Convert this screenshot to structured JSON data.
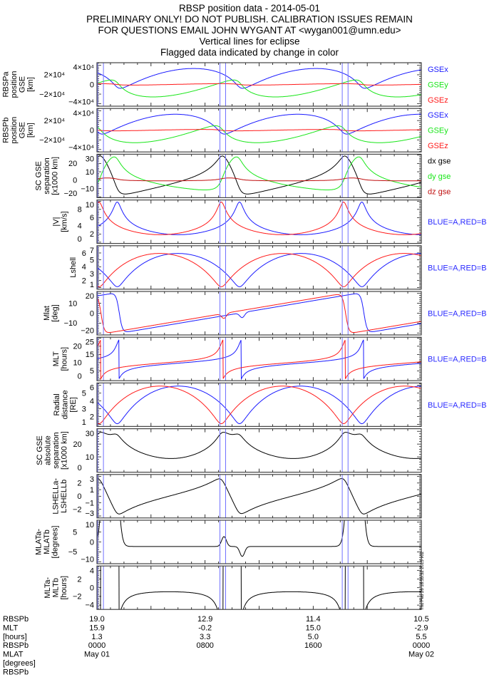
{
  "title_lines": [
    "RBSP position data - 2014-05-01",
    "PRELIMINARY ONLY! DO NOT PUBLISH. CALIBRATION ISSUES REMAIN",
    "FOR QUESTIONS EMAIL JOHN WYGANT AT <wygan001@umn.edu>",
    "Vertical lines for eclipse",
    "Flagged data indicated by change in color"
  ],
  "timestamp": "Thu Feb 26 18:55:32 2015 v02",
  "bottom_annotation": {
    "row_labels": [
      "RBSPb",
      "MLT",
      "[hours]",
      "RBSPb",
      "MLAT",
      "[degrees]",
      "RBSPb"
    ],
    "columns": [
      {
        "hour": 0,
        "values": [
          "19.0",
          "15.9",
          "1.3",
          "0000",
          "May 01"
        ]
      },
      {
        "hour": 8,
        "values": [
          "12.9",
          "-0.2",
          "3.3",
          "0800",
          ""
        ]
      },
      {
        "hour": 16,
        "values": [
          "11.4",
          "15.0",
          "5.0",
          "1600",
          ""
        ]
      },
      {
        "hour": 24,
        "values": [
          "10.5",
          "-2.9",
          "5.5",
          "0000",
          "May 02"
        ]
      }
    ]
  },
  "colors": {
    "blue": "#1a1aff",
    "red": "#ff1a1a",
    "green": "#19e619",
    "black": "#000000",
    "darkred": "#c01010",
    "eclipse": "#7070ff",
    "legend_blue": "#2a2aff"
  },
  "chart_data": {
    "type": "line",
    "x_range_hours": [
      0,
      24
    ],
    "eclipse_hours": [
      [
        0.05,
        0.48
      ],
      [
        9.1,
        9.52
      ],
      [
        18.15,
        18.58
      ]
    ],
    "orbit_model": {
      "period_hours": 9.05,
      "perigee_hours": {
        "A": 1.5,
        "B": 0.15
      },
      "perigee_RE": 1.1,
      "apogee_RE": 5.9,
      "perigee_direction_deg": 145,
      "mlat_slope_deg_per_hour": 2.3,
      "mlat_zero_hour": {
        "A": 10.5,
        "B": 9.5
      }
    },
    "panels": [
      {
        "ylabel": [
          "RBSPa",
          "position",
          "GSE",
          "[km]"
        ],
        "yrange": [
          -45000,
          45000
        ],
        "yticks": [
          {
            "v": 40000,
            "t": "4×10⁴"
          },
          {
            "v": 20000,
            "t": "2×10⁴"
          },
          {
            "v": 0,
            "t": "0"
          },
          {
            "v": -20000,
            "t": "−2×10⁴"
          },
          {
            "v": -40000,
            "t": "−4×10⁴"
          }
        ],
        "series": [
          {
            "name": "GSEx",
            "key": "xA",
            "color": "blue"
          },
          {
            "name": "GSEy",
            "key": "yA",
            "color": "green"
          },
          {
            "name": "GSEz",
            "key": "zA",
            "color": "red"
          }
        ],
        "legend": [
          {
            "text": "GSEx",
            "color": "blue"
          },
          {
            "text": "GSEy",
            "color": "green"
          },
          {
            "text": "GSEz",
            "color": "red"
          }
        ]
      },
      {
        "ylabel": [
          "RBSPb",
          "position",
          "GSE",
          "[km]"
        ],
        "yrange": [
          -45000,
          45000
        ],
        "yticks": [
          {
            "v": 40000,
            "t": "4×10⁴"
          },
          {
            "v": 20000,
            "t": "2×10⁴"
          },
          {
            "v": 0,
            "t": "0"
          },
          {
            "v": -20000,
            "t": "−2×10⁴"
          },
          {
            "v": -40000,
            "t": "−4×10⁴"
          }
        ],
        "series": [
          {
            "name": "GSEx",
            "key": "xB",
            "color": "blue"
          },
          {
            "name": "GSEy",
            "key": "yB",
            "color": "green"
          },
          {
            "name": "GSEz",
            "key": "zB",
            "color": "red"
          }
        ],
        "legend": [
          {
            "text": "GSEx",
            "color": "blue"
          },
          {
            "text": "GSEy",
            "color": "green"
          },
          {
            "text": "GSEz",
            "color": "red"
          }
        ]
      },
      {
        "ylabel": [
          "SC GSE",
          "separation",
          "[x1000 km]"
        ],
        "yrange": [
          -21,
          31
        ],
        "yticks": [
          {
            "v": 30,
            "t": "30"
          },
          {
            "v": 20,
            "t": "20"
          },
          {
            "v": 10,
            "t": "10"
          },
          {
            "v": 0,
            "t": "0"
          },
          {
            "v": -10,
            "t": "−10"
          },
          {
            "v": -20,
            "t": "−20"
          }
        ],
        "series": [
          {
            "name": "dx gse",
            "key": "dx",
            "color": "black"
          },
          {
            "name": "dy gse",
            "key": "dy",
            "color": "green"
          },
          {
            "name": "dz gse",
            "key": "dz",
            "color": "darkred"
          }
        ],
        "legend": [
          {
            "text": "dx gse",
            "color": "black"
          },
          {
            "text": "dy gse",
            "color": "green"
          },
          {
            "text": "dz gse",
            "color": "darkred"
          }
        ]
      },
      {
        "ylabel": [
          "|V|",
          "[km/s]"
        ],
        "yrange": [
          -0.3,
          10.3
        ],
        "yticks": [
          {
            "v": 10,
            "t": "10"
          },
          {
            "v": 8,
            "t": "8"
          },
          {
            "v": 6,
            "t": "6"
          },
          {
            "v": 4,
            "t": "4"
          },
          {
            "v": 2,
            "t": "2"
          },
          {
            "v": 0,
            "t": "0"
          }
        ],
        "series": [
          {
            "name": "A",
            "key": "vA",
            "color": "blue"
          },
          {
            "name": "B",
            "key": "vB",
            "color": "red"
          }
        ],
        "legend": [
          {
            "text": "BLUE=A,RED=B",
            "color": "legend_blue"
          }
        ]
      },
      {
        "ylabel": [
          "Lshell"
        ],
        "yrange": [
          0.75,
          7.05
        ],
        "yticks": [
          {
            "v": 7,
            "t": "7"
          },
          {
            "v": 6,
            "t": "6"
          },
          {
            "v": 5,
            "t": "5"
          },
          {
            "v": 4,
            "t": "4"
          },
          {
            "v": 3,
            "t": "3"
          },
          {
            "v": 2,
            "t": "2"
          },
          {
            "v": 1,
            "t": "1"
          }
        ],
        "series": [
          {
            "name": "A",
            "key": "LA",
            "color": "blue"
          },
          {
            "name": "B",
            "key": "LB",
            "color": "red"
          }
        ],
        "legend": [
          {
            "text": "BLUE=A,RED=B",
            "color": "legend_blue"
          }
        ]
      },
      {
        "ylabel": [
          "Mlat",
          "[deg]"
        ],
        "yrange": [
          -22,
          22
        ],
        "yticks": [
          {
            "v": 20,
            "t": "20"
          },
          {
            "v": 10,
            "t": "10"
          },
          {
            "v": 0,
            "t": "0"
          },
          {
            "v": -10,
            "t": "−10"
          },
          {
            "v": -20,
            "t": "−20"
          }
        ],
        "series": [
          {
            "name": "A",
            "key": "mlatA",
            "color": "blue"
          },
          {
            "name": "B",
            "key": "mlatB",
            "color": "red"
          }
        ],
        "legend": [
          {
            "text": "BLUE=A,RED=B",
            "color": "legend_blue"
          }
        ]
      },
      {
        "ylabel": [
          "MLT",
          "[hours]"
        ],
        "yrange": [
          -1,
          25.5
        ],
        "yticks": [
          {
            "v": 25,
            "t": "25"
          },
          {
            "v": 20,
            "t": "20"
          },
          {
            "v": 15,
            "t": "15"
          },
          {
            "v": 10,
            "t": "10"
          },
          {
            "v": 5,
            "t": "5"
          },
          {
            "v": 0,
            "t": "0"
          }
        ],
        "series": [
          {
            "name": "A",
            "key": "mltA",
            "color": "blue"
          },
          {
            "name": "B",
            "key": "mltB",
            "color": "red"
          }
        ],
        "legend": [
          {
            "text": "BLUE=A,RED=B",
            "color": "legend_blue"
          }
        ]
      },
      {
        "ylabel": [
          "Radial",
          "distance",
          "[RE]"
        ],
        "yrange": [
          0.75,
          6.3
        ],
        "yticks": [
          {
            "v": 6,
            "t": "6"
          },
          {
            "v": 5,
            "t": "5"
          },
          {
            "v": 4,
            "t": "4"
          },
          {
            "v": 3,
            "t": "3"
          },
          {
            "v": 2,
            "t": "2"
          },
          {
            "v": 1,
            "t": "1"
          }
        ],
        "series": [
          {
            "name": "A",
            "key": "rA",
            "color": "blue"
          },
          {
            "name": "B",
            "key": "rB",
            "color": "red"
          }
        ],
        "legend": [
          {
            "text": "BLUE=A,RED=B",
            "color": "legend_blue"
          }
        ]
      },
      {
        "ylabel": [
          "SC GSE",
          "absolute",
          "separation",
          "[x1000 km]"
        ],
        "yrange": [
          -2,
          32
        ],
        "yticks": [
          {
            "v": 30,
            "t": "30"
          },
          {
            "v": 20,
            "t": "20"
          },
          {
            "v": 10,
            "t": "10"
          },
          {
            "v": 0,
            "t": "0"
          }
        ],
        "series": [
          {
            "name": "separation",
            "key": "sep",
            "color": "black"
          }
        ],
        "legend": []
      },
      {
        "ylabel": [
          "LSHELLa-",
          "LSHELLb"
        ],
        "yrange": [
          -3.3,
          3.3
        ],
        "yticks": [
          {
            "v": 3,
            "t": "3"
          },
          {
            "v": 2,
            "t": "2"
          },
          {
            "v": 1,
            "t": "1"
          },
          {
            "v": 0,
            "t": "0"
          },
          {
            "v": -1,
            "t": "−1"
          },
          {
            "v": -2,
            "t": "−2"
          },
          {
            "v": -3,
            "t": "−3"
          }
        ],
        "series": [
          {
            "name": "dL",
            "key": "dL",
            "color": "black"
          }
        ],
        "legend": []
      },
      {
        "ylabel": [
          "MLATa-",
          "MLATb",
          "[degrees]"
        ],
        "yrange": [
          -11,
          11
        ],
        "yticks": [
          {
            "v": 10,
            "t": "10"
          },
          {
            "v": 5,
            "t": "5"
          },
          {
            "v": 0,
            "t": "0"
          },
          {
            "v": -5,
            "t": "−5"
          },
          {
            "v": -10,
            "t": "−10"
          }
        ],
        "series": [
          {
            "name": "dMlat",
            "key": "dMlat",
            "color": "black"
          }
        ],
        "legend": []
      },
      {
        "ylabel": [
          "MLTa-",
          "MLTb",
          "[hours]"
        ],
        "yrange": [
          -5,
          5
        ],
        "yticks": [
          {
            "v": 4,
            "t": "4"
          },
          {
            "v": 2,
            "t": "2"
          },
          {
            "v": 0,
            "t": "0"
          },
          {
            "v": -2,
            "t": "−2"
          },
          {
            "v": -4,
            "t": "−4"
          }
        ],
        "series": [
          {
            "name": "dMlt",
            "key": "dMlt",
            "color": "black"
          }
        ],
        "legend": []
      }
    ]
  }
}
